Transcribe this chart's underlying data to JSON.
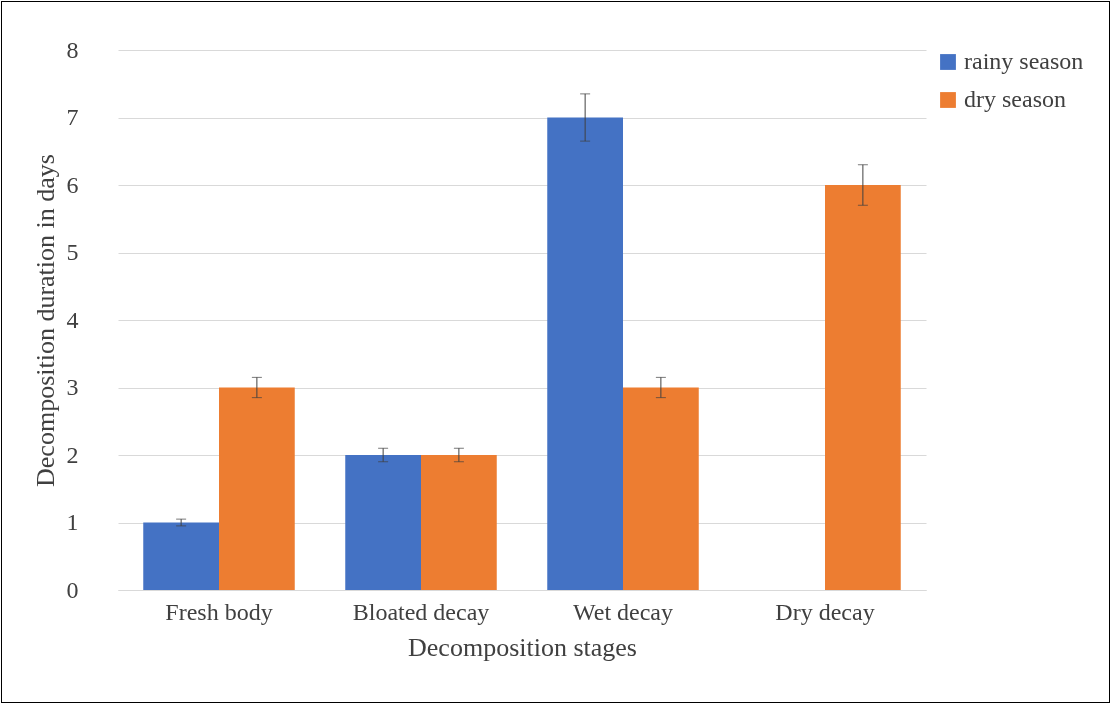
{
  "chart_data": {
    "type": "bar",
    "xlabel": "Decomposition stages",
    "ylabel": "Decomposition duration in days",
    "categories": [
      "Fresh body",
      "Bloated decay",
      "Wet decay",
      "Dry decay"
    ],
    "series": [
      {
        "name": "rainy season",
        "color": "#4472c4",
        "values": [
          1,
          2,
          7,
          null
        ],
        "errors": [
          0.05,
          0.1,
          0.35,
          null
        ]
      },
      {
        "name": "dry season",
        "color": "#ed7d31",
        "values": [
          3,
          2,
          3,
          6
        ],
        "errors": [
          0.15,
          0.1,
          0.15,
          0.3
        ]
      }
    ],
    "ylim": [
      0,
      8
    ],
    "yticks": [
      0,
      1,
      2,
      3,
      4,
      5,
      6,
      7,
      8
    ],
    "grid": "y",
    "legend": "right"
  }
}
